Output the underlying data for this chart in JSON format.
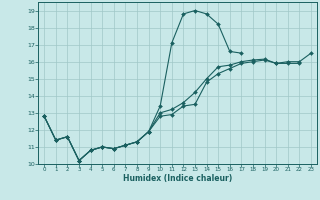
{
  "bg_color": "#c8e8e8",
  "line_color": "#1a6060",
  "grid_color": "#a0c8c8",
  "xlabel": "Humidex (Indice chaleur)",
  "xlim": [
    -0.5,
    23.5
  ],
  "ylim": [
    10,
    19.5
  ],
  "xticks": [
    0,
    1,
    2,
    3,
    4,
    5,
    6,
    7,
    8,
    9,
    10,
    11,
    12,
    13,
    14,
    15,
    16,
    17,
    18,
    19,
    20,
    21,
    22,
    23
  ],
  "yticks": [
    10,
    11,
    12,
    13,
    14,
    15,
    16,
    17,
    18,
    19
  ],
  "series1_x": [
    0,
    1,
    2,
    3,
    4,
    5,
    6,
    7,
    8,
    9,
    10,
    11,
    12,
    13,
    14,
    15,
    16,
    17
  ],
  "series1_y": [
    12.8,
    11.4,
    11.6,
    10.2,
    10.8,
    11.0,
    10.9,
    11.1,
    11.3,
    11.9,
    13.4,
    17.1,
    18.8,
    19.0,
    18.8,
    18.2,
    16.6,
    16.5
  ],
  "series2_x": [
    0,
    1,
    2,
    3,
    4,
    5,
    6,
    7,
    8,
    9,
    10,
    11,
    12,
    13,
    14,
    15,
    16,
    17,
    18,
    19,
    20,
    21,
    22
  ],
  "series2_y": [
    12.8,
    11.4,
    11.6,
    10.2,
    10.8,
    11.0,
    10.9,
    11.1,
    11.3,
    11.9,
    12.8,
    12.9,
    13.4,
    13.5,
    14.8,
    15.3,
    15.6,
    15.9,
    16.0,
    16.1,
    15.9,
    15.9,
    15.9
  ],
  "series3_x": [
    0,
    1,
    2,
    3,
    4,
    5,
    6,
    7,
    8,
    9,
    10,
    11,
    12,
    13,
    14,
    15,
    16,
    17,
    18,
    19,
    20,
    21,
    22,
    23
  ],
  "series3_y": [
    12.8,
    11.4,
    11.6,
    10.2,
    10.8,
    11.0,
    10.9,
    11.1,
    11.3,
    11.9,
    13.0,
    13.2,
    13.6,
    14.2,
    15.0,
    15.7,
    15.8,
    16.0,
    16.1,
    16.15,
    15.9,
    16.0,
    16.0,
    16.5
  ]
}
